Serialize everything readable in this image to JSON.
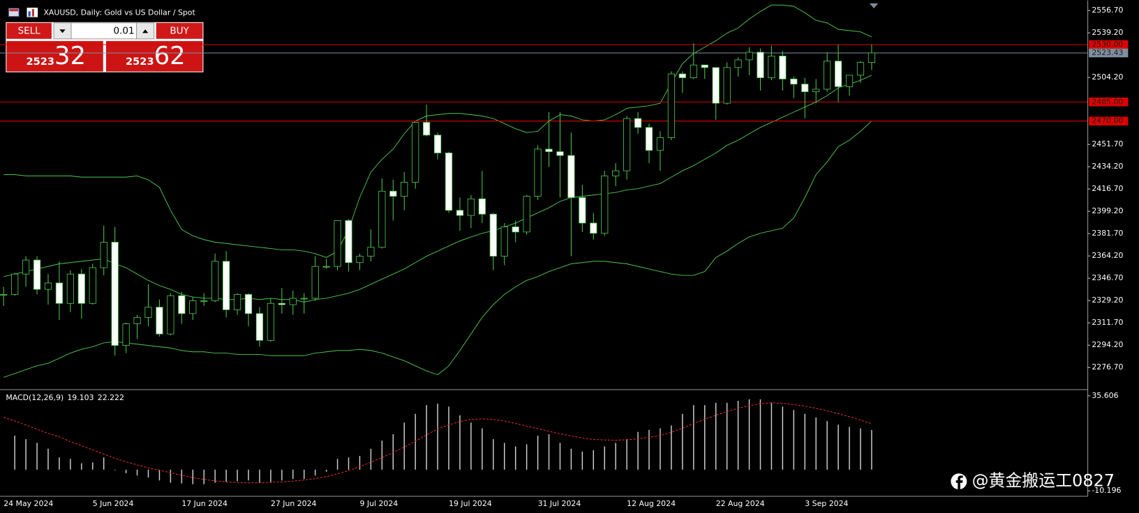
{
  "window": {
    "title": "XAUUSD, Daily:  Gold vs US Dollar / Spot"
  },
  "trade_panel": {
    "sell": "SELL",
    "buy": "BUY",
    "lot": "0.01",
    "sell_prefix": "2523",
    "sell_pips": "32",
    "buy_prefix": "2523",
    "buy_pips": "62"
  },
  "watermark": "@黄金搬运工0827",
  "chart_data": [
    {
      "type": "candlestick",
      "categories": [
        "24 May 2024",
        null,
        null,
        null,
        null,
        null,
        null,
        null,
        "5 Jun 2024",
        null,
        null,
        null,
        null,
        null,
        null,
        null,
        "17 Jun 2024",
        null,
        null,
        null,
        null,
        null,
        null,
        null,
        "27 Jun 2024",
        null,
        null,
        null,
        null,
        null,
        null,
        null,
        "9 Jul 2024",
        null,
        null,
        null,
        null,
        null,
        null,
        null,
        "19 Jul 2024",
        null,
        null,
        null,
        null,
        null,
        null,
        null,
        "31 Jul 2024",
        null,
        null,
        null,
        null,
        null,
        null,
        null,
        "12 Aug 2024",
        null,
        null,
        null,
        null,
        null,
        null,
        null,
        "22 Aug 2024",
        null,
        null,
        null,
        null,
        null,
        null,
        null,
        "3 Sep 2024",
        null,
        null,
        null,
        null,
        null,
        null
      ],
      "open": [
        2334,
        2334,
        2350,
        2361,
        2338,
        2343,
        2327,
        2350,
        2327,
        2355,
        2375,
        2294,
        2311,
        2316,
        2324,
        2303,
        2333,
        2319,
        2329,
        2329,
        2360,
        2322,
        2334,
        2319,
        2298,
        2327,
        2326,
        2331,
        2331,
        2356,
        2356,
        2392,
        2359,
        2364,
        2371,
        2415,
        2411,
        2422,
        2469,
        2459,
        2445,
        2400,
        2396,
        2409,
        2397,
        2364,
        2387,
        2383,
        2411,
        2448,
        2446,
        2443,
        2410,
        2390,
        2382,
        2427,
        2431,
        2472,
        2465,
        2447,
        2457,
        2507,
        2504,
        2514,
        2512,
        2484,
        2512,
        2518,
        2524,
        2504,
        2521,
        2503,
        2499,
        2493,
        2495,
        2517,
        2497,
        2506,
        2516
      ],
      "high": [
        2340,
        2351,
        2364,
        2364,
        2350,
        2360,
        2353,
        2354,
        2358,
        2388,
        2387,
        2312,
        2318,
        2342,
        2330,
        2335,
        2336,
        2332,
        2335,
        2366,
        2368,
        2335,
        2335,
        2324,
        2331,
        2339,
        2337,
        2335,
        2364,
        2362,
        2392,
        2393,
        2366,
        2385,
        2425,
        2424,
        2430,
        2469,
        2483,
        2461,
        2446,
        2410,
        2412,
        2431,
        2398,
        2390,
        2392,
        2412,
        2451,
        2477,
        2477,
        2461,
        2420,
        2398,
        2431,
        2437,
        2474,
        2477,
        2468,
        2462,
        2509,
        2509,
        2531,
        2514,
        2512,
        2516,
        2520,
        2528,
        2527,
        2529,
        2525,
        2505,
        2504,
        2503,
        2524,
        2530,
        2506,
        2517,
        2530
      ],
      "low": [
        2325,
        2333,
        2340,
        2334,
        2326,
        2314,
        2320,
        2315,
        2326,
        2349,
        2286,
        2288,
        2299,
        2309,
        2301,
        2302,
        2311,
        2314,
        2325,
        2328,
        2316,
        2318,
        2309,
        2293,
        2297,
        2319,
        2318,
        2319,
        2329,
        2354,
        2353,
        2352,
        2353,
        2360,
        2370,
        2392,
        2400,
        2417,
        2458,
        2440,
        2398,
        2384,
        2386,
        2390,
        2353,
        2357,
        2375,
        2381,
        2408,
        2434,
        2410,
        2364,
        2383,
        2377,
        2380,
        2419,
        2424,
        2460,
        2437,
        2431,
        2455,
        2492,
        2503,
        2503,
        2471,
        2483,
        2505,
        2506,
        2494,
        2502,
        2494,
        2488,
        2472,
        2484,
        2493,
        2485,
        2490,
        2500,
        2510
      ],
      "close": [
        2334,
        2350,
        2361,
        2338,
        2343,
        2327,
        2350,
        2327,
        2355,
        2375,
        2294,
        2311,
        2316,
        2324,
        2303,
        2333,
        2319,
        2329,
        2329,
        2360,
        2322,
        2334,
        2319,
        2298,
        2327,
        2326,
        2331,
        2331,
        2356,
        2356,
        2392,
        2359,
        2364,
        2371,
        2415,
        2411,
        2422,
        2469,
        2459,
        2445,
        2400,
        2396,
        2409,
        2397,
        2364,
        2387,
        2383,
        2411,
        2448,
        2446,
        2443,
        2410,
        2390,
        2382,
        2427,
        2431,
        2472,
        2465,
        2447,
        2457,
        2507,
        2504,
        2514,
        2512,
        2484,
        2512,
        2518,
        2524,
        2504,
        2521,
        2503,
        2499,
        2493,
        2495,
        2517,
        2497,
        2506,
        2516,
        2523.43
      ],
      "up_color": "#000000",
      "down_color": "#ffffff",
      "wick_color": "#4ec94e",
      "series": [
        {
          "color": "#4ec94e",
          "values": [
            2428,
            2428,
            2427,
            2427,
            2427,
            2427,
            2427,
            2426,
            2426,
            2426,
            2426,
            2426,
            2427,
            2424,
            2418,
            2400,
            2385,
            2380,
            2377,
            2375,
            2374,
            2373,
            2372,
            2371,
            2370,
            2369,
            2369,
            2368,
            2366,
            2363,
            2368,
            2385,
            2410,
            2430,
            2440,
            2448,
            2460,
            2470,
            2474,
            2475,
            2476,
            2476,
            2475,
            2474,
            2472,
            2468,
            2464,
            2461,
            2462,
            2470,
            2475,
            2474,
            2471,
            2470,
            2471,
            2475,
            2480,
            2481,
            2482,
            2484,
            2500,
            2515,
            2523,
            2528,
            2533,
            2539,
            2543,
            2550,
            2556,
            2561,
            2561,
            2560,
            2555,
            2549,
            2547,
            2542,
            2541,
            2540,
            2536
          ]
        },
        {
          "color": "#4ec94e",
          "values": [
            2348,
            2350,
            2352,
            2354,
            2356,
            2358,
            2359,
            2360,
            2361,
            2362,
            2358,
            2355,
            2350,
            2345,
            2341,
            2338,
            2334,
            2332,
            2331,
            2331,
            2330,
            2330,
            2331,
            2330,
            2331,
            2330,
            2330,
            2328,
            2330,
            2331,
            2333,
            2335,
            2338,
            2342,
            2346,
            2350,
            2354,
            2359,
            2364,
            2368,
            2372,
            2376,
            2379,
            2382,
            2384,
            2387,
            2390,
            2394,
            2398,
            2402,
            2407,
            2410,
            2411,
            2412,
            2413,
            2414,
            2416,
            2417,
            2419,
            2421,
            2426,
            2431,
            2435,
            2440,
            2445,
            2451,
            2455,
            2460,
            2465,
            2469,
            2473,
            2477,
            2481,
            2485,
            2490,
            2496,
            2499,
            2502,
            2506
          ]
        },
        {
          "color": "#4ec94e",
          "values": [
            2269,
            2272,
            2275,
            2278,
            2280,
            2284,
            2288,
            2291,
            2293,
            2296,
            2297,
            2296,
            2295,
            2294,
            2293,
            2292,
            2290,
            2289,
            2289,
            2288,
            2288,
            2287,
            2287,
            2287,
            2286,
            2286,
            2286,
            2286,
            2288,
            2289,
            2290,
            2290,
            2291,
            2290,
            2288,
            2285,
            2282,
            2278,
            2274,
            2271,
            2278,
            2290,
            2303,
            2316,
            2326,
            2334,
            2340,
            2345,
            2348,
            2352,
            2355,
            2358,
            2359,
            2360,
            2360,
            2359,
            2358,
            2356,
            2354,
            2352,
            2350,
            2349,
            2349,
            2352,
            2363,
            2368,
            2374,
            2379,
            2382,
            2384,
            2386,
            2394,
            2410,
            2428,
            2438,
            2450,
            2455,
            2462,
            2470
          ]
        }
      ],
      "levels": [
        {
          "value": 2530,
          "label": "2530.00",
          "color": "#e00000"
        },
        {
          "value": 2485,
          "label": "2485.00",
          "color": "#e00000"
        },
        {
          "value": 2470,
          "label": "2470.00",
          "color": "#e00000"
        },
        {
          "value": 2523.43,
          "color": "#7f8fa0"
        }
      ],
      "ylim": [
        2260.2,
        2561.8
      ],
      "yticks": [
        {
          "value": 2556.7,
          "label": "2556.70"
        },
        {
          "value": 2539.2,
          "label": "2539.20"
        },
        {
          "value": 2504.2,
          "label": "2504.20"
        },
        {
          "value": 2451.7,
          "label": "2451.70"
        },
        {
          "value": 2434.2,
          "label": "2434.20"
        },
        {
          "value": 2416.7,
          "label": "2416.70"
        },
        {
          "value": 2399.2,
          "label": "2399.20"
        },
        {
          "value": 2381.7,
          "label": "2381.70"
        },
        {
          "value": 2364.2,
          "label": "2364.20"
        },
        {
          "value": 2346.7,
          "label": "2346.70"
        },
        {
          "value": 2329.2,
          "label": "2329.20"
        },
        {
          "value": 2311.7,
          "label": "2311.70"
        },
        {
          "value": 2294.2,
          "label": "2294.20"
        },
        {
          "value": 2276.7,
          "label": "2276.70"
        }
      ]
    },
    {
      "type": "macd",
      "title": "MACD(12,26,9)",
      "series": [
        {
          "color": "#d0d0d0",
          "values": [
            null,
            16.4,
            14.7,
            12.9,
            10.1,
            5.9,
            5.2,
            3.1,
            3.5,
            5.9,
            -0.3,
            -1.7,
            -2.8,
            -3.8,
            -5.2,
            -6.3,
            -6.6,
            -7.0,
            -7.0,
            -6.3,
            -5.9,
            -5.6,
            -5.2,
            -6.3,
            -6.3,
            -5.2,
            -4.5,
            -4.5,
            -2.8,
            -1.0,
            5.2,
            5.9,
            6.6,
            10.1,
            14.0,
            17.1,
            22.7,
            26.9,
            31.1,
            31.8,
            30.4,
            26.2,
            22.7,
            19.9,
            14.7,
            12.9,
            11.2,
            12.2,
            16.4,
            17.1,
            12.9,
            10.1,
            8.7,
            9.4,
            11.2,
            12.9,
            14.7,
            18.2,
            19.2,
            19.9,
            21.3,
            26.9,
            31.1,
            31.1,
            32.2,
            32.2,
            33.2,
            33.9,
            33.9,
            32.2,
            30.4,
            28.7,
            26.9,
            25.2,
            23.4,
            21.7,
            20.6,
            19.9,
            19.103
          ]
        },
        {
          "color": "#e03030",
          "values": [
            25.2,
            23.5,
            21.5,
            19.5,
            17.5,
            15.8,
            13.5,
            11.5,
            9.5,
            7.5,
            5.5,
            3.8,
            2.3,
            0.9,
            -0.3,
            -1.5,
            -2.7,
            -3.8,
            -4.7,
            -5.4,
            -5.9,
            -6.2,
            -6.3,
            -6.3,
            -6.1,
            -5.9,
            -5.5,
            -5.0,
            -4.3,
            -3.3,
            -2.0,
            -0.5,
            1.5,
            3.6,
            5.8,
            8.3,
            10.8,
            13.8,
            16.8,
            19.6,
            21.6,
            23.2,
            24.2,
            24.5,
            24.2,
            23.4,
            22.3,
            21.0,
            19.8,
            18.5,
            17.3,
            16.2,
            15.3,
            14.6,
            14.3,
            14.2,
            14.4,
            14.9,
            15.6,
            16.5,
            18.0,
            20.0,
            22.2,
            24.3,
            26.2,
            28.0,
            29.6,
            30.9,
            31.8,
            32.2,
            32.0,
            31.4,
            30.6,
            29.6,
            28.4,
            27.0,
            25.5,
            23.9,
            22.222
          ]
        }
      ],
      "ylim": [
        -12.64,
        38.05
      ],
      "yticks": [
        35.606,
        -10.196
      ]
    }
  ]
}
